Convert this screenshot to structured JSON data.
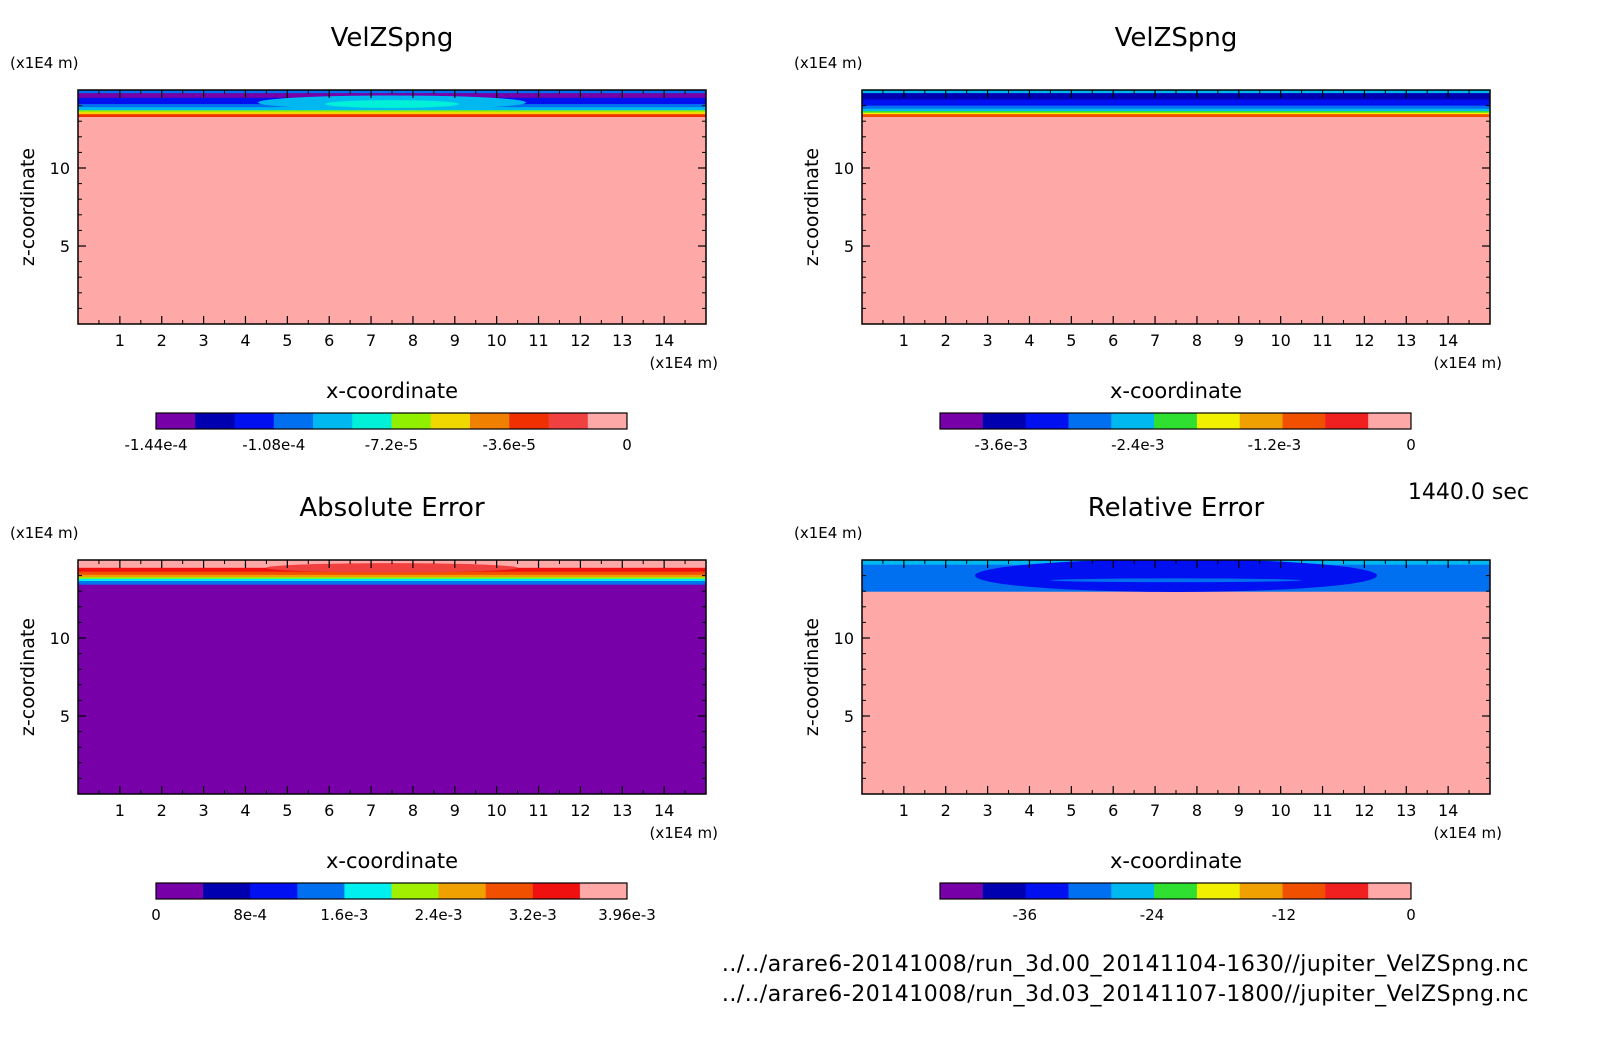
{
  "time_label": "1440.0 sec",
  "source_files": [
    "../../arare6-20141008/run_3d.00_20141104-1630//jupiter_VelZSpng.nc",
    "../../arare6-20141008/run_3d.03_20141107-1800//jupiter_VelZSpng.nc"
  ],
  "chart_data": [
    {
      "type": "heatmap",
      "title": "VelZSpng",
      "xlabel": "x-coordinate",
      "ylabel": "z-coordinate",
      "x_unit": "(x1E4 m)",
      "y_unit": "(x1E4 m)",
      "xlim": [
        0,
        15
      ],
      "ylim": [
        0,
        15
      ],
      "x_ticks": [
        "1",
        "2",
        "3",
        "4",
        "5",
        "6",
        "7",
        "8",
        "9",
        "10",
        "11",
        "12",
        "13",
        "14"
      ],
      "y_ticks": [
        "5",
        "10"
      ],
      "colorbar": {
        "colors": [
          "#7700a8",
          "#0000b0",
          "#0010f0",
          "#0070f0",
          "#00b8f0",
          "#00f0d8",
          "#90f000",
          "#f0d800",
          "#f08000",
          "#f03000",
          "#f04040",
          "#ffa8a8"
        ],
        "labels": [
          "-1.44e-4",
          "-1.08e-4",
          "-7.2e-5",
          "-3.6e-5",
          "0"
        ],
        "label_fracs": [
          0,
          0.25,
          0.5,
          0.75,
          1
        ]
      },
      "fill_color": "#ffa8a8",
      "bands": [
        {
          "z_top": 15.0,
          "z_bottom": 14.8,
          "color": "#0070f0"
        },
        {
          "z_top": 14.8,
          "z_bottom": 14.5,
          "color": "#7700a8"
        },
        {
          "z_top": 14.5,
          "z_bottom": 14.1,
          "color": "#0010f0"
        },
        {
          "z_top": 14.1,
          "z_bottom": 13.9,
          "color": "#0070f0"
        },
        {
          "z_top": 13.9,
          "z_bottom": 13.7,
          "color": "#00b8f0"
        },
        {
          "z_top": 13.7,
          "z_bottom": 13.6,
          "color": "#90f000"
        },
        {
          "z_top": 13.6,
          "z_bottom": 13.45,
          "color": "#f0d800"
        },
        {
          "z_top": 13.45,
          "z_bottom": 13.3,
          "color": "#f03000"
        }
      ],
      "blobs": [
        {
          "x": 7.5,
          "z": 14.2,
          "rx": 3.2,
          "rz": 0.45,
          "color": "#00b8f0"
        },
        {
          "x": 7.5,
          "z": 14.1,
          "rx": 1.6,
          "rz": 0.25,
          "color": "#00f0d8"
        }
      ]
    },
    {
      "type": "heatmap",
      "title": "VelZSpng",
      "xlabel": "x-coordinate",
      "ylabel": "z-coordinate",
      "x_unit": "(x1E4 m)",
      "y_unit": "(x1E4 m)",
      "xlim": [
        0,
        15
      ],
      "ylim": [
        0,
        15
      ],
      "x_ticks": [
        "1",
        "2",
        "3",
        "4",
        "5",
        "6",
        "7",
        "8",
        "9",
        "10",
        "11",
        "12",
        "13",
        "14"
      ],
      "y_ticks": [
        "5",
        "10"
      ],
      "colorbar": {
        "colors": [
          "#7700a8",
          "#0000b0",
          "#0010f0",
          "#0070f0",
          "#00b8f0",
          "#30e030",
          "#f0f000",
          "#f0a000",
          "#f05000",
          "#f02020",
          "#ffa8a8"
        ],
        "labels": [
          "-3.6e-3",
          "-2.4e-3",
          "-1.2e-3",
          "0"
        ],
        "label_fracs": [
          0.13,
          0.42,
          0.71,
          1
        ]
      },
      "fill_color": "#ffa8a8",
      "bands": [
        {
          "z_top": 15.0,
          "z_bottom": 14.8,
          "color": "#00b8f0"
        },
        {
          "z_top": 14.8,
          "z_bottom": 14.4,
          "color": "#0000b0"
        },
        {
          "z_top": 14.4,
          "z_bottom": 14.0,
          "color": "#0010f0"
        },
        {
          "z_top": 14.0,
          "z_bottom": 13.8,
          "color": "#0070f0"
        },
        {
          "z_top": 13.8,
          "z_bottom": 13.65,
          "color": "#00b8f0"
        },
        {
          "z_top": 13.65,
          "z_bottom": 13.55,
          "color": "#30e030"
        },
        {
          "z_top": 13.55,
          "z_bottom": 13.45,
          "color": "#f0f000"
        },
        {
          "z_top": 13.45,
          "z_bottom": 13.3,
          "color": "#f05000"
        }
      ],
      "blobs": []
    },
    {
      "type": "heatmap",
      "title": "Absolute Error",
      "xlabel": "x-coordinate",
      "ylabel": "z-coordinate",
      "x_unit": "(x1E4 m)",
      "y_unit": "(x1E4 m)",
      "xlim": [
        0,
        15
      ],
      "ylim": [
        0,
        15
      ],
      "x_ticks": [
        "1",
        "2",
        "3",
        "4",
        "5",
        "6",
        "7",
        "8",
        "9",
        "10",
        "11",
        "12",
        "13",
        "14"
      ],
      "y_ticks": [
        "5",
        "10"
      ],
      "colorbar": {
        "colors": [
          "#7700a8",
          "#0000b0",
          "#0010f0",
          "#0070f0",
          "#00f0f0",
          "#a0f000",
          "#f0a000",
          "#f05000",
          "#f01010",
          "#ffa8a8"
        ],
        "labels": [
          "0",
          "8e-4",
          "1.6e-3",
          "2.4e-3",
          "3.2e-3",
          "3.96e-3"
        ],
        "label_fracs": [
          0,
          0.2,
          0.4,
          0.6,
          0.8,
          1
        ]
      },
      "fill_color": "#7700a8",
      "bands": [
        {
          "z_top": 15.0,
          "z_bottom": 14.5,
          "color": "#ffa8a8"
        },
        {
          "z_top": 14.5,
          "z_bottom": 14.25,
          "color": "#f01010"
        },
        {
          "z_top": 14.25,
          "z_bottom": 14.05,
          "color": "#f05000"
        },
        {
          "z_top": 14.05,
          "z_bottom": 13.9,
          "color": "#f0a000"
        },
        {
          "z_top": 13.9,
          "z_bottom": 13.8,
          "color": "#a0f000"
        },
        {
          "z_top": 13.8,
          "z_bottom": 13.65,
          "color": "#00f0f0"
        },
        {
          "z_top": 13.65,
          "z_bottom": 13.45,
          "color": "#0070f0"
        }
      ],
      "blobs": [
        {
          "x": 7.5,
          "z": 14.5,
          "rx": 3.0,
          "rz": 0.3,
          "color": "#f04040"
        }
      ]
    },
    {
      "type": "heatmap",
      "title": "Relative Error",
      "xlabel": "x-coordinate",
      "ylabel": "z-coordinate",
      "x_unit": "(x1E4 m)",
      "y_unit": "(x1E4 m)",
      "xlim": [
        0,
        15
      ],
      "ylim": [
        0,
        15
      ],
      "x_ticks": [
        "1",
        "2",
        "3",
        "4",
        "5",
        "6",
        "7",
        "8",
        "9",
        "10",
        "11",
        "12",
        "13",
        "14"
      ],
      "y_ticks": [
        "5",
        "10"
      ],
      "colorbar": {
        "colors": [
          "#7700a8",
          "#0000b0",
          "#0010f0",
          "#0070f0",
          "#00b8f0",
          "#30e030",
          "#f0f000",
          "#f0a000",
          "#f05000",
          "#f02020",
          "#ffa8a8"
        ],
        "labels": [
          "-36",
          "-24",
          "-12",
          "0"
        ],
        "label_fracs": [
          0.18,
          0.45,
          0.73,
          1
        ]
      },
      "fill_color": "#ffa8a8",
      "bands": [
        {
          "z_top": 15.0,
          "z_bottom": 14.7,
          "color": "#00b8f0"
        },
        {
          "z_top": 14.7,
          "z_bottom": 13.0,
          "color": "#0070f0"
        }
      ],
      "blobs": [
        {
          "x": 7.5,
          "z": 14.0,
          "rx": 4.8,
          "rz": 1.05,
          "color": "#0010f0"
        },
        {
          "x": 7.5,
          "z": 13.7,
          "rx": 3.0,
          "rz": 0.12,
          "color": "#0070f0"
        }
      ]
    }
  ]
}
